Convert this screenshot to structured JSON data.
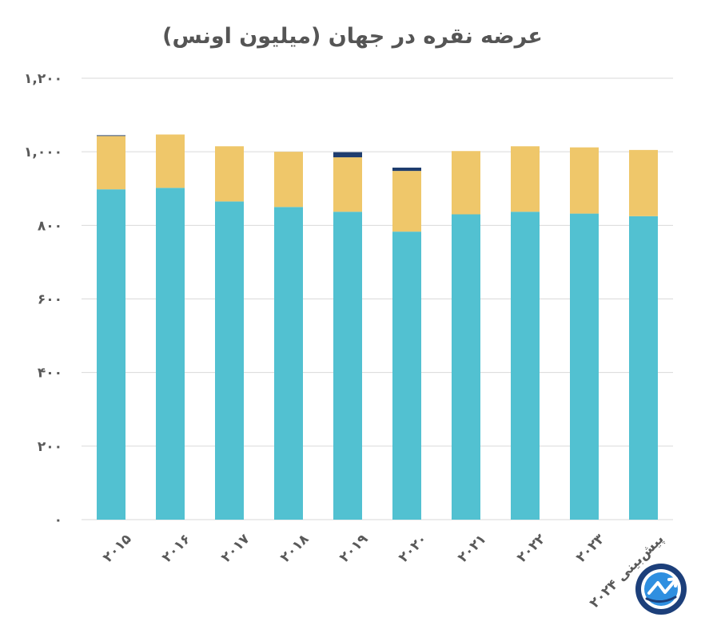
{
  "chart_data": {
    "type": "bar",
    "stacked": true,
    "title": "عرضه نقره در جهان (میلیون اونس)",
    "xlabel": "",
    "ylabel": "",
    "ylim": [
      0,
      1200
    ],
    "yticks": [
      {
        "value": 0,
        "label": "۰"
      },
      {
        "value": 200,
        "label": "۲۰۰"
      },
      {
        "value": 400,
        "label": "۴۰۰"
      },
      {
        "value": 600,
        "label": "۶۰۰"
      },
      {
        "value": 800,
        "label": "۸۰۰"
      },
      {
        "value": 1000,
        "label": "۱,۰۰۰"
      },
      {
        "value": 1200,
        "label": "۱,۲۰۰"
      }
    ],
    "grid": true,
    "categories": [
      "۲۰۱۵",
      "۲۰۱۶",
      "۲۰۱۷",
      "۲۰۱۸",
      "۲۰۱۹",
      "۲۰۲۰",
      "۲۰۲۱",
      "۲۰۲۲",
      "۲۰۲۳",
      "پیش‌بینی ۲۰۲۴"
    ],
    "series": [
      {
        "color": "#52c1d1",
        "values": [
          898,
          902,
          865,
          850,
          837,
          783,
          830,
          837,
          832,
          825
        ]
      },
      {
        "color": "#efc76a",
        "values": [
          145,
          145,
          150,
          150,
          148,
          165,
          172,
          178,
          180,
          180
        ]
      },
      {
        "color": "#1f3d6e",
        "values": [
          2,
          0,
          0,
          0,
          14,
          9,
          0,
          0,
          0,
          0
        ]
      }
    ]
  }
}
